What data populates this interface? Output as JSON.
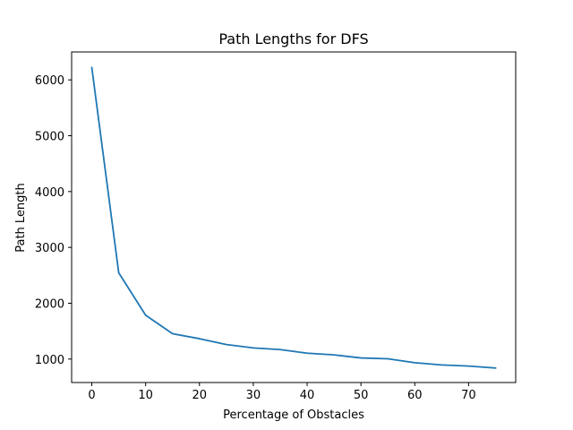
{
  "chart_data": {
    "type": "line",
    "title": "Path Lengths for DFS",
    "xlabel": "Percentage of Obstacles",
    "ylabel": "Path Length",
    "xlim": [
      -3.75,
      78.75
    ],
    "ylim": [
      580,
      6500
    ],
    "x_ticks": [
      0,
      10,
      20,
      30,
      40,
      50,
      60,
      70
    ],
    "y_ticks": [
      1000,
      2000,
      3000,
      4000,
      5000,
      6000
    ],
    "grid": false,
    "legend": "none",
    "series": [
      {
        "color": "#1f77b4",
        "x": [
          0,
          5,
          10,
          15,
          20,
          25,
          30,
          35,
          40,
          45,
          50,
          55,
          60,
          65,
          70,
          75
        ],
        "y": [
          6220,
          2545,
          1785,
          1455,
          1365,
          1260,
          1200,
          1170,
          1105,
          1075,
          1020,
          1005,
          935,
          895,
          875,
          840
        ]
      }
    ]
  }
}
